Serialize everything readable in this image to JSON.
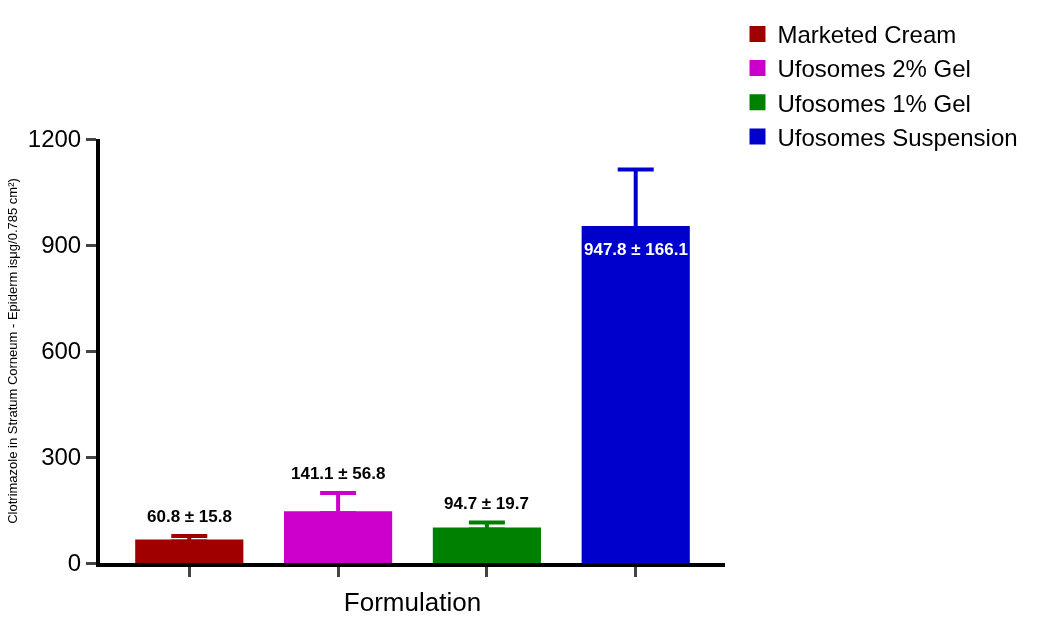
{
  "chart_data": {
    "type": "bar",
    "xlabel": "Formulation",
    "ylabel": "Clotrimazole in Stratum Corneum - Epiderm isμg/0.785 cm²)",
    "categories": [
      null,
      null,
      null,
      null
    ],
    "series": [
      {
        "name": "Marketed Cream",
        "color": "#a00000",
        "values": [
          60.8,
          null,
          null,
          null
        ],
        "errors": [
          [
            60.8,
            76.6
          ],
          null,
          null,
          null
        ],
        "value_labels": [
          "60.8 ± 15.8",
          null,
          null,
          null
        ]
      },
      {
        "name": "Ufosomes 2% Gel",
        "color": "#cc00cc",
        "values": [
          null,
          141.1,
          null,
          null
        ],
        "errors": [
          null,
          [
            141.1,
            197.9
          ],
          null,
          null
        ],
        "value_labels": [
          null,
          "141.1 ± 56.8",
          null,
          null
        ]
      },
      {
        "name": "Ufosomes 1% Gel",
        "color": "#008000",
        "values": [
          null,
          null,
          94.7,
          null
        ],
        "errors": [
          null,
          null,
          [
            94.7,
            114.4
          ],
          null
        ],
        "value_labels": [
          null,
          null,
          "94.7 ± 19.7",
          null
        ]
      },
      {
        "name": "Ufosomes Suspension",
        "color": "#0000cc",
        "values": [
          null,
          null,
          null,
          947.8
        ],
        "errors": [
          null,
          null,
          null,
          [
            947.8,
            1113.9
          ]
        ],
        "value_labels": [
          null,
          null,
          null,
          "947.8 ± 166.1"
        ]
      }
    ],
    "ylim": [
      0,
      1200
    ],
    "yticks": [
      0,
      300,
      600,
      900,
      1200
    ],
    "grid": false,
    "legend": "top right"
  }
}
